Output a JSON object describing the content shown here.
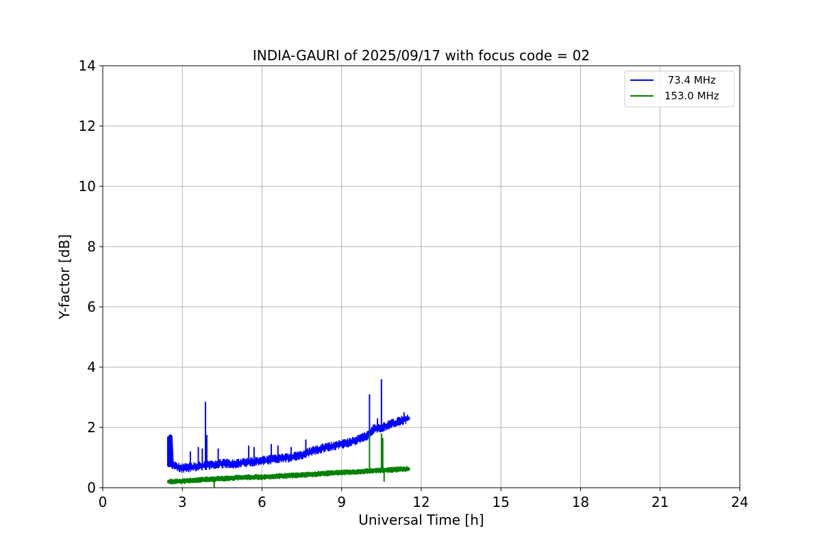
{
  "chart_data": {
    "type": "line",
    "title": "INDIA-GAURI of 2025/09/17 with focus code = 02",
    "xlabel": "Universal Time [h]",
    "ylabel": "Y-factor [dB]",
    "xlim": [
      0,
      24
    ],
    "ylim": [
      0,
      14
    ],
    "xticks": [
      0,
      3,
      6,
      9,
      12,
      15,
      18,
      21,
      24
    ],
    "yticks": [
      0,
      2,
      4,
      6,
      8,
      10,
      12,
      14
    ],
    "xtick_labels": [
      "0",
      "3",
      "6",
      "9",
      "12",
      "15",
      "18",
      "21",
      "24"
    ],
    "ytick_labels": [
      "0",
      "2",
      "4",
      "6",
      "8",
      "10",
      "12",
      "14"
    ],
    "grid": true,
    "legend_position": "top-right",
    "series": [
      {
        "name": " 73.4 MHz",
        "color": "#0000ff",
        "noise_amplitude": 0.15,
        "x": [
          2.5,
          2.55,
          2.6,
          3.0,
          3.5,
          4.0,
          4.5,
          5.0,
          5.5,
          6.0,
          6.5,
          7.0,
          7.5,
          8.0,
          8.5,
          9.0,
          9.5,
          10.0,
          10.2,
          10.5,
          11.0,
          11.5
        ],
        "y": [
          0.75,
          1.7,
          0.75,
          0.65,
          0.7,
          0.75,
          0.8,
          0.8,
          0.85,
          0.9,
          0.95,
          1.0,
          1.1,
          1.25,
          1.35,
          1.45,
          1.55,
          1.75,
          1.95,
          2.0,
          2.15,
          2.3
        ],
        "spikes": [
          {
            "x": 2.45,
            "y": 1.7
          },
          {
            "x": 2.55,
            "y": 1.4
          },
          {
            "x": 3.3,
            "y": 1.2
          },
          {
            "x": 3.6,
            "y": 1.35
          },
          {
            "x": 3.75,
            "y": 1.3
          },
          {
            "x": 3.87,
            "y": 2.85
          },
          {
            "x": 3.92,
            "y": 1.75
          },
          {
            "x": 4.35,
            "y": 1.3
          },
          {
            "x": 5.5,
            "y": 1.4
          },
          {
            "x": 5.7,
            "y": 1.35
          },
          {
            "x": 6.35,
            "y": 1.45
          },
          {
            "x": 6.6,
            "y": 1.4
          },
          {
            "x": 7.1,
            "y": 1.35
          },
          {
            "x": 7.65,
            "y": 1.6
          },
          {
            "x": 10.05,
            "y": 3.1
          },
          {
            "x": 10.15,
            "y": 1.9
          },
          {
            "x": 10.35,
            "y": 2.3
          },
          {
            "x": 10.5,
            "y": 3.6
          },
          {
            "x": 11.35,
            "y": 2.5
          }
        ]
      },
      {
        "name": "153.0 MHz",
        "color": "#008000",
        "noise_amplitude": 0.09,
        "x": [
          2.5,
          3.0,
          3.5,
          4.0,
          4.5,
          5.0,
          5.5,
          6.0,
          6.5,
          7.0,
          7.5,
          8.0,
          8.5,
          9.0,
          9.5,
          10.0,
          10.5,
          11.0,
          11.5
        ],
        "y": [
          0.2,
          0.22,
          0.25,
          0.28,
          0.3,
          0.33,
          0.35,
          0.35,
          0.38,
          0.4,
          0.42,
          0.45,
          0.48,
          0.5,
          0.52,
          0.55,
          0.58,
          0.6,
          0.62
        ],
        "spikes": [
          {
            "x": 4.2,
            "y": 0.0
          },
          {
            "x": 10.05,
            "y": 1.8
          },
          {
            "x": 10.5,
            "y": 1.8
          },
          {
            "x": 10.55,
            "y": 1.65
          },
          {
            "x": 10.6,
            "y": 0.2
          }
        ]
      }
    ]
  }
}
